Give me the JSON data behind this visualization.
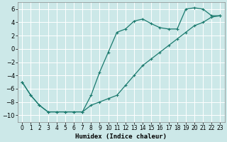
{
  "title": "",
  "xlabel": "Humidex (Indice chaleur)",
  "background_color": "#cce8e8",
  "grid_color": "#ffffff",
  "line_color": "#1a7a6e",
  "xlim": [
    -0.5,
    23.5
  ],
  "ylim": [
    -11,
    7
  ],
  "xticks": [
    0,
    1,
    2,
    3,
    4,
    5,
    6,
    7,
    8,
    9,
    10,
    11,
    12,
    13,
    14,
    15,
    16,
    17,
    18,
    19,
    20,
    21,
    22,
    23
  ],
  "yticks": [
    -10,
    -8,
    -6,
    -4,
    -2,
    0,
    2,
    4,
    6
  ],
  "series1_x": [
    0,
    1,
    2,
    3,
    4,
    5,
    6,
    7,
    8,
    9,
    10,
    11,
    12,
    13,
    14,
    15,
    16,
    17,
    18,
    19,
    20,
    21,
    22,
    23
  ],
  "series1_y": [
    -5,
    -7,
    -8.5,
    -9.5,
    -9.5,
    -9.5,
    -9.5,
    -9.5,
    -7.0,
    -3.5,
    -0.5,
    2.5,
    3.0,
    4.2,
    4.5,
    3.8,
    3.2,
    3.0,
    3.0,
    6.0,
    6.2,
    6.0,
    5.0,
    5.0
  ],
  "series2_x": [
    0,
    1,
    2,
    3,
    4,
    5,
    6,
    7,
    8,
    9,
    10,
    11,
    12,
    13,
    14,
    15,
    16,
    17,
    18,
    19,
    20,
    21,
    22,
    23
  ],
  "series2_y": [
    -5,
    -7,
    -8.5,
    -9.5,
    -9.5,
    -9.5,
    -9.5,
    -9.5,
    -8.5,
    -8.0,
    -7.5,
    -7.0,
    -5.5,
    -4.0,
    -2.5,
    -1.5,
    -0.5,
    0.5,
    1.5,
    2.5,
    3.5,
    4.0,
    4.8,
    5.0
  ],
  "marker": "+",
  "markersize": 3.5,
  "markeredgewidth": 0.8,
  "linewidth": 0.9
}
